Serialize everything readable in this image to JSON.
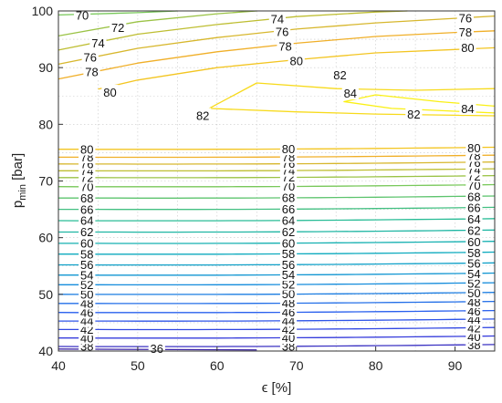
{
  "chart_data": {
    "type": "contour",
    "xlabel": "ϵ [%]",
    "ylabel_main": "p",
    "ylabel_sub": "min",
    "ylabel_unit": " [bar]",
    "xlim": [
      40,
      95
    ],
    "ylim": [
      40,
      100
    ],
    "x_ticks": [
      40,
      50,
      60,
      70,
      80,
      90
    ],
    "y_ticks": [
      40,
      50,
      60,
      70,
      80,
      90,
      100
    ],
    "grid": "dotted",
    "levels_lower": [
      36,
      38,
      40,
      42,
      44,
      46,
      48,
      50,
      52,
      54,
      56,
      58,
      60,
      62,
      64,
      66,
      68,
      70,
      72,
      74,
      76,
      78,
      80
    ],
    "lower_level_p": {
      "38": 40.8,
      "40": 42.3,
      "42": 43.8,
      "44": 45.3,
      "46": 46.8,
      "48": 48.4,
      "50": 50.0,
      "52": 51.7,
      "54": 53.4,
      "56": 55.2,
      "58": 57.1,
      "60": 59.0,
      "62": 61.0,
      "64": 63.0,
      "66": 65.0,
      "68": 67.0,
      "70": 69.0,
      "72": 70.6,
      "74": 71.8,
      "76": 73.0,
      "78": 74.2,
      "80": 75.6
    },
    "upper_levels": [
      70,
      72,
      74,
      76,
      78,
      80,
      82,
      84
    ],
    "labels_left": [
      "38",
      "40",
      "42",
      "44",
      "46",
      "48",
      "50",
      "52",
      "54",
      "56",
      "58",
      "60",
      "62",
      "64",
      "66",
      "68",
      "70",
      "72",
      "74",
      "76",
      "78",
      "80"
    ],
    "labels_mid": [
      "38",
      "40",
      "42",
      "44",
      "46",
      "48",
      "50",
      "52",
      "54",
      "56",
      "58",
      "60",
      "62",
      "64",
      "66",
      "68",
      "70",
      "72",
      "74",
      "76",
      "78",
      "80"
    ],
    "labels_right": [
      "38",
      "40",
      "42",
      "44",
      "46",
      "48",
      "50",
      "52",
      "54",
      "56",
      "58",
      "60",
      "62",
      "64",
      "66",
      "68",
      "70",
      "72",
      "74",
      "76",
      "78",
      "80"
    ],
    "labels_upper": [
      "70",
      "72",
      "74",
      "76",
      "78",
      "80",
      "82",
      "84",
      "74",
      "76",
      "78",
      "80",
      "82",
      "76",
      "78",
      "80",
      "82",
      "84",
      "36"
    ]
  }
}
